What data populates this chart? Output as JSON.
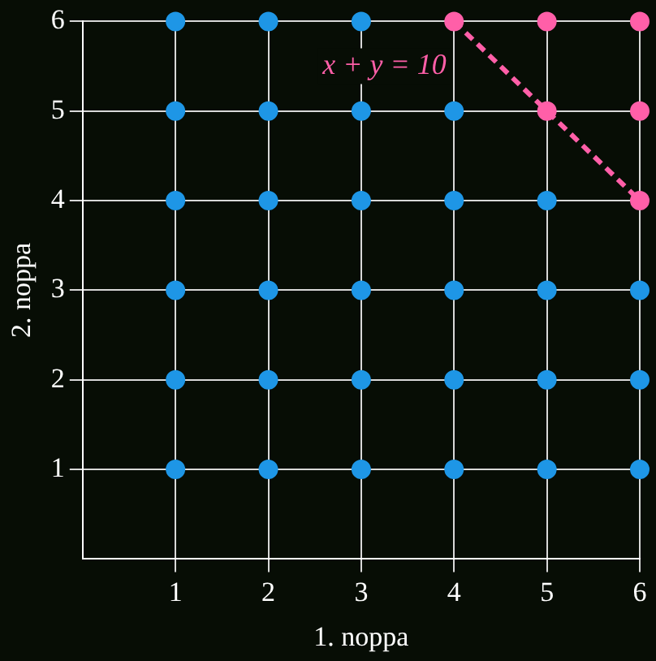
{
  "chart_data": {
    "type": "scatter",
    "xlabel": "1. noppa",
    "ylabel": "2. noppa",
    "series": [
      {
        "color": "#1e96e6",
        "x": [
          1,
          2,
          3,
          4,
          5,
          6,
          1,
          2,
          3,
          4,
          5,
          6,
          1,
          2,
          3,
          4,
          5,
          6,
          1,
          2,
          3,
          4,
          5,
          1,
          2,
          3,
          4,
          1,
          2,
          3
        ],
        "values": [
          1,
          1,
          1,
          1,
          1,
          1,
          2,
          2,
          2,
          2,
          2,
          2,
          3,
          3,
          3,
          3,
          3,
          3,
          4,
          4,
          4,
          4,
          4,
          5,
          5,
          5,
          5,
          6,
          6,
          6
        ]
      },
      {
        "color": "#ff5fa8",
        "x": [
          4,
          5,
          6,
          5,
          6,
          6
        ],
        "values": [
          6,
          6,
          6,
          5,
          5,
          4
        ]
      },
      {
        "type": "line",
        "color": "#ff5fa8",
        "x": [
          4,
          6
        ],
        "values": [
          6,
          4
        ],
        "line_style": "dashed",
        "marker": "none"
      }
    ],
    "annotations": [
      "x + y = 10"
    ],
    "xlim": [
      0,
      6
    ],
    "ylim": [
      0,
      6
    ],
    "xticks": [
      1,
      2,
      3,
      4,
      5,
      6
    ],
    "yticks": [
      1,
      2,
      3,
      4,
      5,
      6
    ],
    "grid": true,
    "legend": false,
    "marker": "circle"
  }
}
